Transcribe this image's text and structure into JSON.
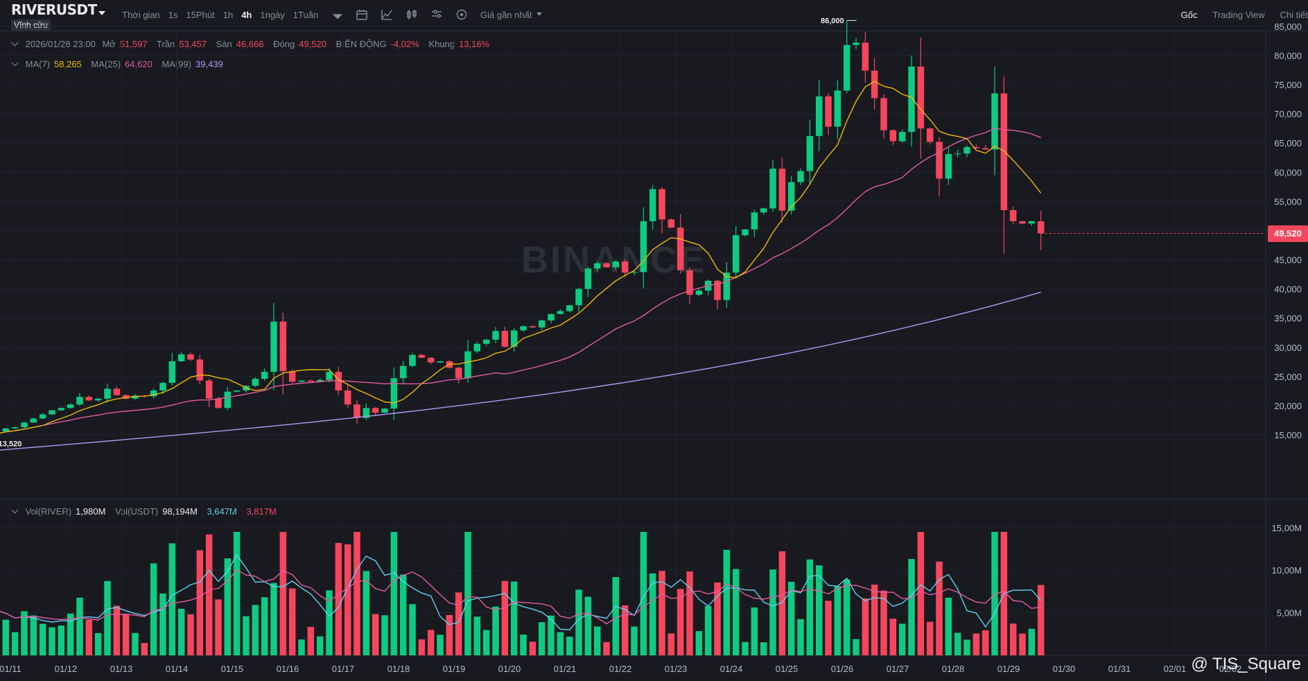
{
  "header": {
    "symbol": "RIVERUSDT",
    "contract_type": "Vĩnh cửu",
    "time_label": "Thời gian",
    "intervals": [
      "1s",
      "15Phút",
      "1h",
      "4h",
      "1ngày",
      "1Tuần"
    ],
    "active_interval": "4h",
    "price_mode": "Giá gần nhất",
    "views": [
      "Gốc",
      "Trading View",
      "Chi tiết"
    ],
    "icons": [
      "calendar-icon",
      "indicator-icon",
      "candle-type-icon",
      "settings-icon",
      "sync-icon"
    ]
  },
  "ohlc": {
    "datetime": "2026/01/28 23:00",
    "open_label": "Mở",
    "open": "51,597",
    "high_label": "Trần",
    "high": "53,457",
    "low_label": "Sàn",
    "low": "46,666",
    "close_label": "Đóng",
    "close": "49,520",
    "change_label": "BIẾN ĐỘNG",
    "change": "-4,02%",
    "range_label": "Khung",
    "range": "13,16%"
  },
  "ma": {
    "ma7_label": "MA(7)",
    "ma7": "58,265",
    "ma25_label": "MA(25)",
    "ma25": "64,620",
    "ma99_label": "MA(99)",
    "ma99": "39,439"
  },
  "vol": {
    "label1": "Vol(RIVER)",
    "val1": "1,980M",
    "label2": "Vol(USDT)",
    "val2": "98,194M",
    "val3": "3,647M",
    "val4": "3,817M"
  },
  "last_price": "49,520",
  "watermark": "BINANCE",
  "corner_label": "@ TIS_Square",
  "colors": {
    "up": "#0ecb81",
    "down": "#f6465d",
    "ma7": "#f0b90b",
    "ma25": "#e55ba4",
    "ma99": "#b497f5",
    "vol_ma": "#61d1f0",
    "background": "#181a20"
  },
  "chart_data": {
    "type": "candlestick",
    "price_axis_ticks": [
      85000,
      80000,
      75000,
      70000,
      65000,
      60000,
      55000,
      50000,
      45000,
      40000,
      35000,
      30000,
      25000,
      20000,
      15000
    ],
    "price_axis_labels": [
      "85,000",
      "80,000",
      "75,000",
      "70,000",
      "65,000",
      "60,000",
      "55,000",
      "50,000",
      "45,000",
      "40,000",
      "35,000",
      "30,000",
      "25,000",
      "20,000",
      "15,000"
    ],
    "volume_axis_ticks": [
      15,
      10,
      5
    ],
    "volume_axis_labels": [
      "15,00M",
      "10,00M",
      "5,00M"
    ],
    "date_labels": [
      "01/11",
      "01/12",
      "01/13",
      "01/14",
      "01/15",
      "01/16",
      "01/17",
      "01/18",
      "01/19",
      "01/20",
      "01/21",
      "01/22",
      "01/23",
      "01/24",
      "01/25",
      "01/26",
      "01/27",
      "01/28",
      "01/29",
      "01/30",
      "01/31",
      "02/01",
      "02/02"
    ],
    "high_marker": {
      "label": "86,000",
      "value": 86000
    },
    "low_marker": {
      "label": "13,520",
      "value": 13520
    },
    "closes": [
      14800,
      15600,
      16100,
      16300,
      17100,
      17800,
      18500,
      19200,
      19600,
      20200,
      21500,
      20900,
      21200,
      22900,
      21800,
      21200,
      21700,
      21600,
      22600,
      23900,
      27600,
      28800,
      27900,
      24300,
      21200,
      19600,
      22400,
      22600,
      23400,
      24600,
      25800,
      34400,
      25900,
      24100,
      24300,
      24100,
      24400,
      25800,
      22600,
      20200,
      17900,
      19600,
      18800,
      19500,
      24700,
      26800,
      28700,
      28200,
      27400,
      27600,
      26500,
      24700,
      29300,
      30600,
      31300,
      32800,
      30100,
      32900,
      33600,
      33400,
      34600,
      35700,
      36200,
      37200,
      40000,
      43500,
      44400,
      43700,
      44700,
      42800,
      42900,
      51600,
      57100,
      51900,
      50500,
      43200,
      39000,
      39700,
      41400,
      38100,
      42800,
      49200,
      50200,
      53100,
      53800,
      60600,
      53400,
      58300,
      60200,
      66200,
      73000,
      67800,
      74000,
      81800,
      82200,
      77400,
      72700,
      67200,
      65300,
      66900,
      78100,
      67500,
      65200,
      58900,
      63100,
      63200,
      64300,
      64100,
      63900,
      73500,
      53500,
      51600,
      51200,
      51600,
      49520
    ],
    "ma7_current": 58265,
    "ma25_current": 64620,
    "ma99_current": 39439
  }
}
